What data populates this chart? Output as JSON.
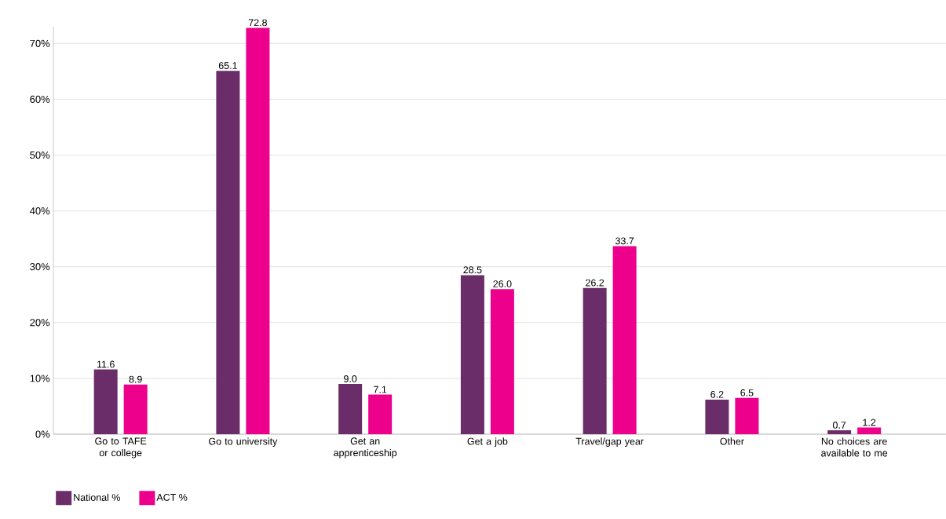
{
  "chart_data": {
    "type": "bar",
    "categories": [
      "Go to TAFE or college",
      "Go to university",
      "Get an apprenticeship",
      "Get a job",
      "Travel/gap year",
      "Other",
      "No choices are available to me"
    ],
    "series": [
      {
        "name": "National %",
        "color": "#6b2d69",
        "values": [
          11.6,
          65.1,
          9.0,
          28.5,
          26.2,
          6.2,
          0.7
        ],
        "value_labels": [
          "11.6",
          "65.1",
          "9.0",
          "28.5",
          "26.2",
          "6.2",
          "0.7"
        ]
      },
      {
        "name": "ACT %",
        "color": "#ec008c",
        "values": [
          8.9,
          72.8,
          7.1,
          26.0,
          33.7,
          6.5,
          1.2
        ],
        "value_labels": [
          "8.9",
          "72.8",
          "7.1",
          "26.0",
          "33.7",
          "6.5",
          "1.2"
        ]
      }
    ],
    "ylim": [
      0,
      73
    ],
    "yticks": [
      {
        "value": 0,
        "label": "0%"
      },
      {
        "value": 10,
        "label": "10%"
      },
      {
        "value": 20,
        "label": "20%"
      },
      {
        "value": 30,
        "label": "30%"
      },
      {
        "value": 40,
        "label": "40%"
      },
      {
        "value": 50,
        "label": "50%"
      },
      {
        "value": 60,
        "label": "60%"
      },
      {
        "value": 70,
        "label": "70%"
      }
    ],
    "grid": "y",
    "legend": "bottom left"
  }
}
